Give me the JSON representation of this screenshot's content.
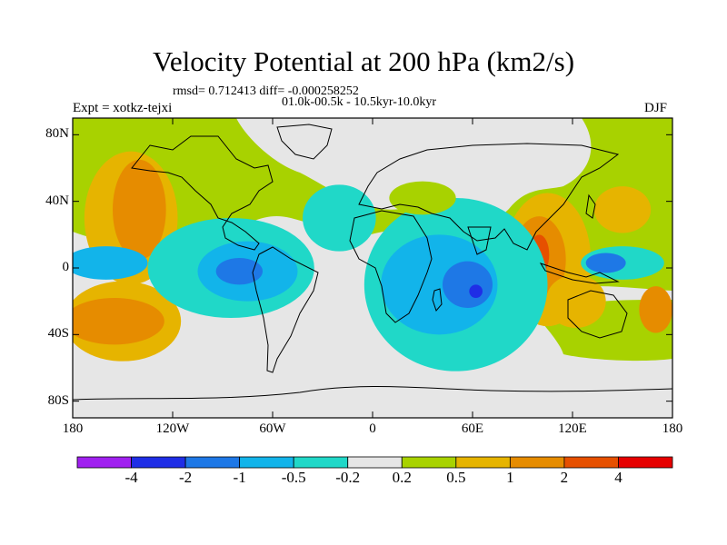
{
  "title": "Velocity Potential at 200 hPa (km2/s)",
  "stats_line": "rmsd= 0.712413 diff= -0.000258252",
  "period_line": "01.0k-00.5k - 10.5kyr-10.0kyr",
  "experiment_label": "Expt = xotkz-tejxi",
  "season_label": "DJF",
  "map": {
    "projection": "cylindrical equidistant",
    "lon_range": [
      -180,
      180
    ],
    "lat_range": [
      -90,
      90
    ],
    "lat_ticks": [
      {
        "value": 80,
        "label": "80N"
      },
      {
        "value": 40,
        "label": "40N"
      },
      {
        "value": 0,
        "label": "0"
      },
      {
        "value": -40,
        "label": "40S"
      },
      {
        "value": -80,
        "label": "80S"
      }
    ],
    "lon_ticks": [
      {
        "value": -180,
        "label": "180"
      },
      {
        "value": -120,
        "label": "120W"
      },
      {
        "value": -60,
        "label": "60W"
      },
      {
        "value": 0,
        "label": "0"
      },
      {
        "value": 60,
        "label": "60E"
      },
      {
        "value": 120,
        "label": "120E"
      },
      {
        "value": 180,
        "label": "180"
      }
    ]
  },
  "colorbar": {
    "colors": [
      "#a020f0",
      "#1f2ee6",
      "#1e78e6",
      "#12b4ea",
      "#20d8c8",
      "#e6e6e6",
      "#a8d200",
      "#e6b400",
      "#e68c00",
      "#e65000",
      "#e60000"
    ],
    "labels": [
      "-4",
      "-2",
      "-1",
      "-0.5",
      "-0.2",
      "0.2",
      "0.5",
      "1",
      "2",
      "4"
    ]
  },
  "regions": [
    {
      "name": "north-pacific-positive",
      "color": "#e6b400",
      "lon": -145,
      "lat": 30,
      "rlon": 28,
      "rlat": 40
    },
    {
      "name": "north-pacific-positive-core",
      "color": "#e68c00",
      "lon": -140,
      "lat": 35,
      "rlon": 16,
      "rlat": 30
    },
    {
      "name": "south-pacific-positive",
      "color": "#e6b400",
      "lon": -150,
      "lat": -32,
      "rlon": 35,
      "rlat": 24
    },
    {
      "name": "south-pacific-positive-core",
      "color": "#e68c00",
      "lon": -155,
      "lat": -32,
      "rlon": 30,
      "rlat": 14
    },
    {
      "name": "western-pacific-positive",
      "color": "#e6b400",
      "lon": 105,
      "lat": 5,
      "rlon": 26,
      "rlat": 40
    },
    {
      "name": "maritime-continent-positive-core",
      "color": "#e68c00",
      "lon": 100,
      "lat": 5,
      "rlon": 16,
      "rlat": 26
    },
    {
      "name": "maritime-continent-max",
      "color": "#e65000",
      "lon": 100,
      "lat": 8,
      "rlon": 6,
      "rlat": 12
    },
    {
      "name": "north-west-pacific-positive",
      "color": "#e6b400",
      "lon": 150,
      "lat": 35,
      "rlon": 17,
      "rlat": 14
    },
    {
      "name": "south-west-pacific-positive",
      "color": "#e6b400",
      "lon": 122,
      "lat": -20,
      "rlon": 18,
      "rlat": 16
    },
    {
      "name": "far-south-west-pacific-positive",
      "color": "#e68c00",
      "lon": 170,
      "lat": -25,
      "rlon": 10,
      "rlat": 14
    },
    {
      "name": "indian-ocean-negative",
      "color": "#20d8c8",
      "lon": 50,
      "lat": -10,
      "rlon": 55,
      "rlat": 52
    },
    {
      "name": "indian-ocean-negative-core",
      "color": "#12b4ea",
      "lon": 40,
      "lat": -10,
      "rlon": 35,
      "rlat": 30
    },
    {
      "name": "indian-ocean-negative-inner",
      "color": "#1e78e6",
      "lon": 57,
      "lat": -10,
      "rlon": 15,
      "rlat": 14
    },
    {
      "name": "indian-ocean-minimum",
      "color": "#1f2ee6",
      "lon": 62,
      "lat": -14,
      "rlon": 4,
      "rlat": 4
    },
    {
      "name": "tropical-america-negative",
      "color": "#20d8c8",
      "lon": -85,
      "lat": 0,
      "rlon": 50,
      "rlat": 30
    },
    {
      "name": "tropical-america-negative-core",
      "color": "#12b4ea",
      "lon": -75,
      "lat": -2,
      "rlon": 30,
      "rlat": 18
    },
    {
      "name": "tropical-america-negative-inner",
      "color": "#1e78e6",
      "lon": -80,
      "lat": -2,
      "rlon": 14,
      "rlat": 8
    },
    {
      "name": "east-pacific-negative",
      "color": "#12b4ea",
      "lon": -160,
      "lat": 3,
      "rlon": 25,
      "rlat": 10
    },
    {
      "name": "central-pacific-negative",
      "color": "#20d8c8",
      "lon": 150,
      "lat": 3,
      "rlon": 25,
      "rlat": 10
    },
    {
      "name": "central-pacific-negative-inner",
      "color": "#1e78e6",
      "lon": 140,
      "lat": 3,
      "rlon": 12,
      "rlat": 6
    },
    {
      "name": "north-atlantic-negative",
      "color": "#20d8c8",
      "lon": -20,
      "lat": 30,
      "rlon": 22,
      "rlat": 20
    },
    {
      "name": "mediterranean-positive",
      "color": "#a8d200",
      "lon": 30,
      "lat": 42,
      "rlon": 20,
      "rlat": 10
    }
  ]
}
